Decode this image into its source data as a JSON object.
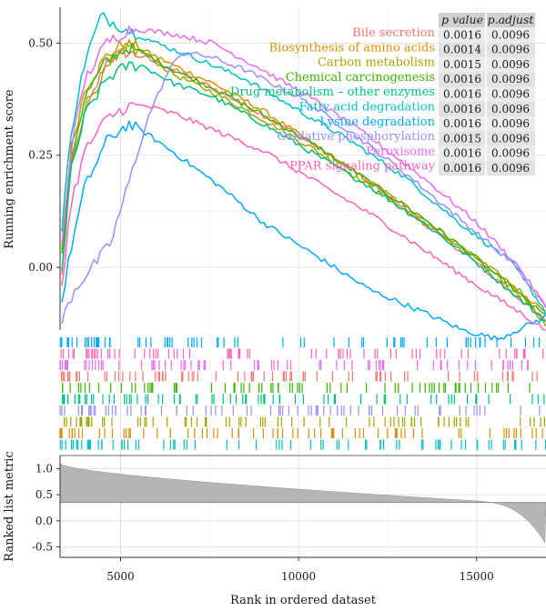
{
  "chart_data": {
    "type": "line",
    "panels": {
      "top": {
        "ylabel": "Running enrichment score",
        "yticks": [
          0.0,
          0.25,
          0.5
        ],
        "ylim": [
          -0.14,
          0.58
        ]
      },
      "bottom": {
        "ylabel": "Ranked list metric",
        "yticks": [
          1.0,
          0.5,
          0.0,
          -0.5
        ],
        "ylim": [
          -0.7,
          1.25
        ]
      }
    },
    "xlabel": "Rank in ordered dataset",
    "xticks": [
      5000,
      10000,
      15000
    ],
    "xlim": [
      3300,
      16950
    ],
    "table": {
      "headers": [
        "p value",
        "p.adjust"
      ],
      "rows": [
        [
          "0.0016",
          "0.0096"
        ],
        [
          "0.0014",
          "0.0096"
        ],
        [
          "0.0015",
          "0.0096"
        ],
        [
          "0.0016",
          "0.0096"
        ],
        [
          "0.0016",
          "0.0096"
        ],
        [
          "0.0016",
          "0.0096"
        ],
        [
          "0.0016",
          "0.0096"
        ],
        [
          "0.0015",
          "0.0096"
        ],
        [
          "0.0016",
          "0.0096"
        ],
        [
          "0.0016",
          "0.0096"
        ]
      ]
    },
    "series": [
      {
        "name": "Bile secretion",
        "color": "#F8766D",
        "points": [
          [
            3350,
            -0.02
          ],
          [
            3600,
            0.22
          ],
          [
            4000,
            0.34
          ],
          [
            4600,
            0.46
          ],
          [
            5100,
            0.48
          ],
          [
            5600,
            0.47
          ],
          [
            6500,
            0.44
          ],
          [
            7600,
            0.4
          ],
          [
            9000,
            0.34
          ],
          [
            10500,
            0.27
          ],
          [
            12000,
            0.19
          ],
          [
            13500,
            0.1
          ],
          [
            15000,
            0.01
          ],
          [
            16200,
            -0.07
          ],
          [
            16950,
            -0.12
          ]
        ]
      },
      {
        "name": "Biosynthesis of amino acids",
        "color": "#D89000",
        "points": [
          [
            3350,
            0.05
          ],
          [
            3600,
            0.26
          ],
          [
            4000,
            0.4
          ],
          [
            4600,
            0.47
          ],
          [
            5100,
            0.5
          ],
          [
            5500,
            0.49
          ],
          [
            6500,
            0.45
          ],
          [
            7600,
            0.41
          ],
          [
            9000,
            0.35
          ],
          [
            10500,
            0.27
          ],
          [
            12000,
            0.19
          ],
          [
            13500,
            0.11
          ],
          [
            15000,
            0.02
          ],
          [
            16200,
            -0.06
          ],
          [
            16950,
            -0.1
          ]
        ]
      },
      {
        "name": "Carbon metabolism",
        "color": "#A3A500",
        "points": [
          [
            3350,
            0.04
          ],
          [
            3600,
            0.22
          ],
          [
            4000,
            0.36
          ],
          [
            4600,
            0.44
          ],
          [
            5200,
            0.49
          ],
          [
            5600,
            0.48
          ],
          [
            6500,
            0.43
          ],
          [
            7600,
            0.39
          ],
          [
            9000,
            0.33
          ],
          [
            10500,
            0.26
          ],
          [
            12000,
            0.18
          ],
          [
            13500,
            0.1
          ],
          [
            15000,
            0.02
          ],
          [
            16200,
            -0.05
          ],
          [
            16950,
            -0.13
          ]
        ]
      },
      {
        "name": "Chemical carcinogenesis",
        "color": "#39B600",
        "points": [
          [
            3350,
            0.02
          ],
          [
            3600,
            0.24
          ],
          [
            4000,
            0.38
          ],
          [
            4600,
            0.46
          ],
          [
            5200,
            0.49
          ],
          [
            5600,
            0.48
          ],
          [
            6500,
            0.44
          ],
          [
            7600,
            0.4
          ],
          [
            9000,
            0.34
          ],
          [
            10500,
            0.27
          ],
          [
            12000,
            0.19
          ],
          [
            13500,
            0.11
          ],
          [
            15000,
            0.02
          ],
          [
            16200,
            -0.06
          ],
          [
            16950,
            -0.11
          ]
        ]
      },
      {
        "name": "Drug metabolism – other enzymes",
        "color": "#00BF7D",
        "points": [
          [
            3350,
            0.0
          ],
          [
            3600,
            0.21
          ],
          [
            4000,
            0.34
          ],
          [
            4600,
            0.42
          ],
          [
            5200,
            0.45
          ],
          [
            5600,
            0.45
          ],
          [
            6500,
            0.41
          ],
          [
            7600,
            0.38
          ],
          [
            9000,
            0.32
          ],
          [
            10500,
            0.25
          ],
          [
            12000,
            0.18
          ],
          [
            13500,
            0.1
          ],
          [
            15000,
            0.01
          ],
          [
            16200,
            -0.07
          ],
          [
            16950,
            -0.12
          ]
        ]
      },
      {
        "name": "Fatty acid degradation",
        "color": "#00BFC4",
        "points": [
          [
            3350,
            0.08
          ],
          [
            3600,
            0.3
          ],
          [
            4000,
            0.46
          ],
          [
            4450,
            0.56
          ],
          [
            4700,
            0.55
          ],
          [
            5200,
            0.53
          ],
          [
            6000,
            0.5
          ],
          [
            7000,
            0.47
          ],
          [
            8500,
            0.42
          ],
          [
            10000,
            0.35
          ],
          [
            11500,
            0.28
          ],
          [
            13000,
            0.2
          ],
          [
            14500,
            0.1
          ],
          [
            16000,
            0.01
          ],
          [
            16950,
            -0.1
          ]
        ]
      },
      {
        "name": "Lysine degradation",
        "color": "#00A9FF",
        "points": [
          [
            3350,
            -0.08
          ],
          [
            3600,
            0.04
          ],
          [
            4000,
            0.18
          ],
          [
            4600,
            0.28
          ],
          [
            5200,
            0.32
          ],
          [
            5700,
            0.3
          ],
          [
            6600,
            0.25
          ],
          [
            7800,
            0.18
          ],
          [
            9000,
            0.1
          ],
          [
            10400,
            0.03
          ],
          [
            12000,
            -0.05
          ],
          [
            13500,
            -0.1
          ],
          [
            14600,
            -0.14
          ],
          [
            15600,
            -0.16
          ],
          [
            16950,
            -0.11
          ]
        ]
      },
      {
        "name": "Oxidative phosphorylation",
        "color": "#9590FF",
        "points": [
          [
            3350,
            -0.12
          ],
          [
            3700,
            -0.05
          ],
          [
            4200,
            0.0
          ],
          [
            4700,
            0.05
          ],
          [
            5200,
            0.18
          ],
          [
            5800,
            0.34
          ],
          [
            6300,
            0.43
          ],
          [
            6700,
            0.48
          ],
          [
            7500,
            0.47
          ],
          [
            8500,
            0.44
          ],
          [
            10000,
            0.38
          ],
          [
            11500,
            0.3
          ],
          [
            13000,
            0.21
          ],
          [
            14500,
            0.11
          ],
          [
            16000,
            0.01
          ],
          [
            16950,
            -0.09
          ]
        ]
      },
      {
        "name": "Peroxisome",
        "color": "#E76BF3",
        "points": [
          [
            3350,
            0.05
          ],
          [
            3600,
            0.26
          ],
          [
            4000,
            0.42
          ],
          [
            4600,
            0.5
          ],
          [
            5200,
            0.53
          ],
          [
            5600,
            0.53
          ],
          [
            6500,
            0.52
          ],
          [
            7600,
            0.5
          ],
          [
            9000,
            0.44
          ],
          [
            10500,
            0.37
          ],
          [
            12000,
            0.29
          ],
          [
            13500,
            0.2
          ],
          [
            15000,
            0.1
          ],
          [
            16200,
            0.0
          ],
          [
            16950,
            -0.09
          ]
        ]
      },
      {
        "name": "PPAR signaling pathway",
        "color": "#FF62BC",
        "points": [
          [
            3350,
            -0.04
          ],
          [
            3600,
            0.14
          ],
          [
            4000,
            0.26
          ],
          [
            4600,
            0.33
          ],
          [
            5200,
            0.36
          ],
          [
            5700,
            0.36
          ],
          [
            6600,
            0.34
          ],
          [
            7800,
            0.3
          ],
          [
            9000,
            0.26
          ],
          [
            10500,
            0.19
          ],
          [
            12000,
            0.12
          ],
          [
            13500,
            0.04
          ],
          [
            15000,
            -0.04
          ],
          [
            16200,
            -0.1
          ],
          [
            16950,
            -0.14
          ]
        ]
      }
    ]
  }
}
